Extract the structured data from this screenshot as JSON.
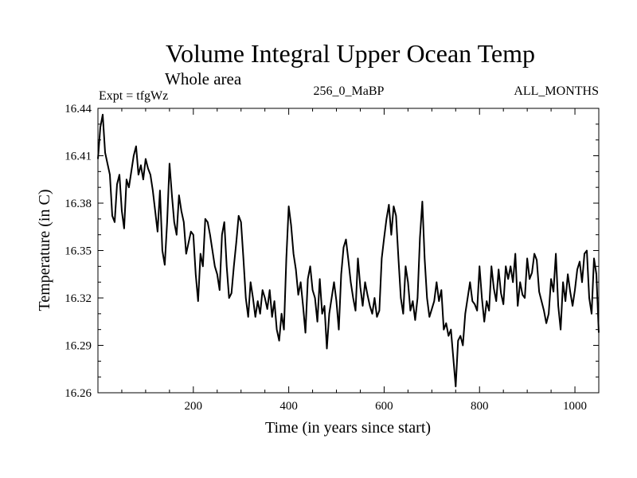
{
  "chart_data": {
    "type": "line",
    "title": "Volume Integral Upper Ocean Temp",
    "subtitle": "Whole area",
    "expt_label": "Expt = tfgWz",
    "run_label": "256_0_MaBP",
    "months_label": "ALL_MONTHS",
    "xlabel": "Time (in years since start)",
    "ylabel": "Temperature (in C)",
    "xlim": [
      0,
      1050
    ],
    "ylim": [
      16.26,
      16.44
    ],
    "x_ticks": [
      200,
      400,
      600,
      800,
      1000
    ],
    "x_tick_labels": [
      "200",
      "400",
      "600",
      "800",
      "1000"
    ],
    "y_ticks": [
      16.26,
      16.29,
      16.32,
      16.35,
      16.38,
      16.41,
      16.44
    ],
    "y_tick_labels": [
      "16.26",
      "16.29",
      "16.32",
      "16.35",
      "16.38",
      "16.41",
      "16.44"
    ],
    "series": [
      {
        "name": "Temperature",
        "color": "#000000",
        "x": [
          0,
          5,
          10,
          15,
          20,
          25,
          30,
          35,
          40,
          45,
          50,
          55,
          60,
          65,
          70,
          75,
          80,
          85,
          90,
          95,
          100,
          105,
          110,
          115,
          120,
          125,
          130,
          135,
          140,
          145,
          150,
          155,
          160,
          165,
          170,
          175,
          180,
          185,
          190,
          195,
          200,
          205,
          210,
          215,
          220,
          225,
          230,
          235,
          240,
          245,
          250,
          255,
          260,
          265,
          270,
          275,
          280,
          285,
          290,
          295,
          300,
          305,
          310,
          315,
          320,
          325,
          330,
          335,
          340,
          345,
          350,
          355,
          360,
          365,
          370,
          375,
          380,
          385,
          390,
          395,
          400,
          405,
          410,
          415,
          420,
          425,
          430,
          435,
          440,
          445,
          450,
          455,
          460,
          465,
          470,
          475,
          480,
          485,
          490,
          495,
          500,
          505,
          510,
          515,
          520,
          525,
          530,
          535,
          540,
          545,
          550,
          555,
          560,
          565,
          570,
          575,
          580,
          585,
          590,
          595,
          600,
          605,
          610,
          615,
          620,
          625,
          630,
          635,
          640,
          645,
          650,
          655,
          660,
          665,
          670,
          675,
          680,
          685,
          690,
          695,
          700,
          705,
          710,
          715,
          720,
          725,
          730,
          735,
          740,
          745,
          750,
          755,
          760,
          765,
          770,
          775,
          780,
          785,
          790,
          795,
          800,
          805,
          810,
          815,
          820,
          825,
          830,
          835,
          840,
          845,
          850,
          855,
          860,
          865,
          870,
          875,
          880,
          885,
          890,
          895,
          900,
          905,
          910,
          915,
          920,
          925,
          930,
          935,
          940,
          945,
          950,
          955,
          960,
          965,
          970,
          975,
          980,
          985,
          990,
          995,
          1000,
          1005,
          1010,
          1015,
          1020,
          1025,
          1030,
          1035,
          1040,
          1045,
          1050
        ],
        "values": [
          16.408,
          16.428,
          16.436,
          16.412,
          16.405,
          16.398,
          16.372,
          16.368,
          16.392,
          16.398,
          16.375,
          16.364,
          16.395,
          16.39,
          16.4,
          16.41,
          16.416,
          16.398,
          16.404,
          16.395,
          16.408,
          16.402,
          16.398,
          16.388,
          16.375,
          16.362,
          16.388,
          16.35,
          16.341,
          16.368,
          16.405,
          16.385,
          16.368,
          16.36,
          16.385,
          16.375,
          16.368,
          16.348,
          16.355,
          16.362,
          16.36,
          16.335,
          16.318,
          16.348,
          16.34,
          16.37,
          16.368,
          16.36,
          16.35,
          16.34,
          16.335,
          16.325,
          16.36,
          16.368,
          16.34,
          16.32,
          16.323,
          16.34,
          16.355,
          16.372,
          16.368,
          16.345,
          16.32,
          16.308,
          16.33,
          16.32,
          16.308,
          16.318,
          16.31,
          16.325,
          16.32,
          16.313,
          16.325,
          16.308,
          16.318,
          16.3,
          16.293,
          16.31,
          16.3,
          16.345,
          16.378,
          16.366,
          16.348,
          16.338,
          16.322,
          16.33,
          16.315,
          16.298,
          16.332,
          16.34,
          16.325,
          16.32,
          16.305,
          16.332,
          16.31,
          16.315,
          16.288,
          16.31,
          16.32,
          16.33,
          16.318,
          16.3,
          16.335,
          16.352,
          16.357,
          16.344,
          16.33,
          16.32,
          16.312,
          16.345,
          16.327,
          16.315,
          16.33,
          16.322,
          16.315,
          16.31,
          16.32,
          16.308,
          16.312,
          16.345,
          16.358,
          16.37,
          16.379,
          16.36,
          16.378,
          16.372,
          16.345,
          16.32,
          16.31,
          16.34,
          16.33,
          16.312,
          16.318,
          16.306,
          16.32,
          16.358,
          16.381,
          16.345,
          16.32,
          16.308,
          16.313,
          16.318,
          16.33,
          16.318,
          16.325,
          16.3,
          16.304,
          16.296,
          16.3,
          16.282,
          16.264,
          16.293,
          16.296,
          16.29,
          16.31,
          16.32,
          16.33,
          16.318,
          16.316,
          16.312,
          16.34,
          16.32,
          16.305,
          16.318,
          16.312,
          16.34,
          16.326,
          16.318,
          16.338,
          16.323,
          16.316,
          16.34,
          16.332,
          16.34,
          16.33,
          16.348,
          16.315,
          16.33,
          16.322,
          16.32,
          16.345,
          16.332,
          16.336,
          16.348,
          16.344,
          16.324,
          16.318,
          16.312,
          16.304,
          16.31,
          16.332,
          16.324,
          16.348,
          16.315,
          16.3,
          16.33,
          16.318,
          16.335,
          16.324,
          16.315,
          16.325,
          16.338,
          16.343,
          16.33,
          16.348,
          16.35,
          16.32,
          16.31,
          16.345,
          16.335,
          16.298
        ]
      }
    ]
  }
}
